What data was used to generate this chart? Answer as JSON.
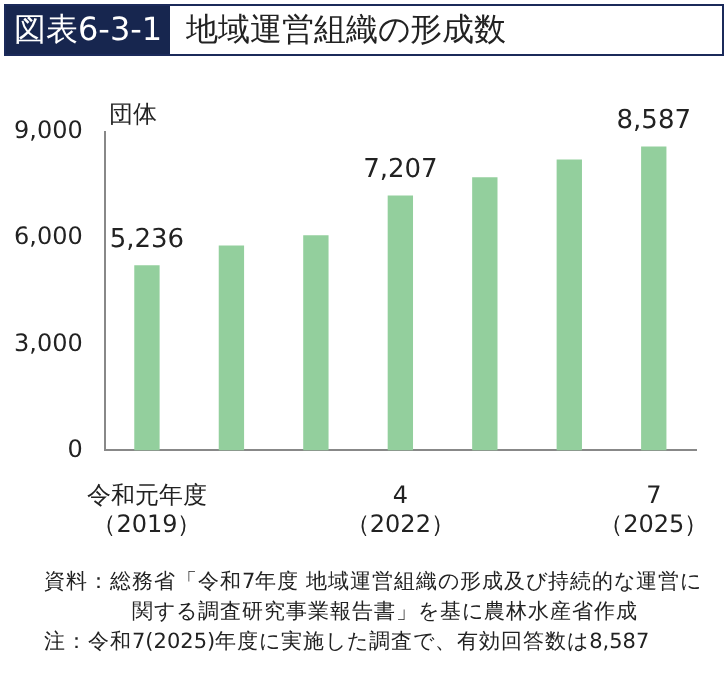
{
  "chart_data": {
    "type": "bar",
    "title": "地域運営組織の形成数",
    "ylabel": "団体",
    "categories": [
      "令和元年度（2019）",
      null,
      null,
      "4（2022）",
      null,
      null,
      "7（2025）"
    ],
    "values": [
      5236,
      5790,
      6080,
      7207,
      7720,
      8220,
      8587
    ],
    "value_labels": [
      "5,236",
      null,
      null,
      "7,207",
      null,
      null,
      "8,587"
    ],
    "color": "#93cf9d",
    "ylim": [
      0,
      9000
    ],
    "yticks": [
      0,
      {
        "value": 3000,
        "label": "3,000"
      },
      {
        "value": 6000,
        "label": "6,000"
      },
      {
        "value": 9000,
        "label": "9,000"
      }
    ],
    "grid": false,
    "legend": false,
    "annotations": [
      "図表6-3-1",
      "資料：総務省「令和7年度 地域運営組織の形成及び持続的な運営に関する調査研究事業報告書」を基に農林水産省作成",
      "注：令和7(2025)年度に実施した調査で、有効回答数は8,587"
    ]
  }
}
